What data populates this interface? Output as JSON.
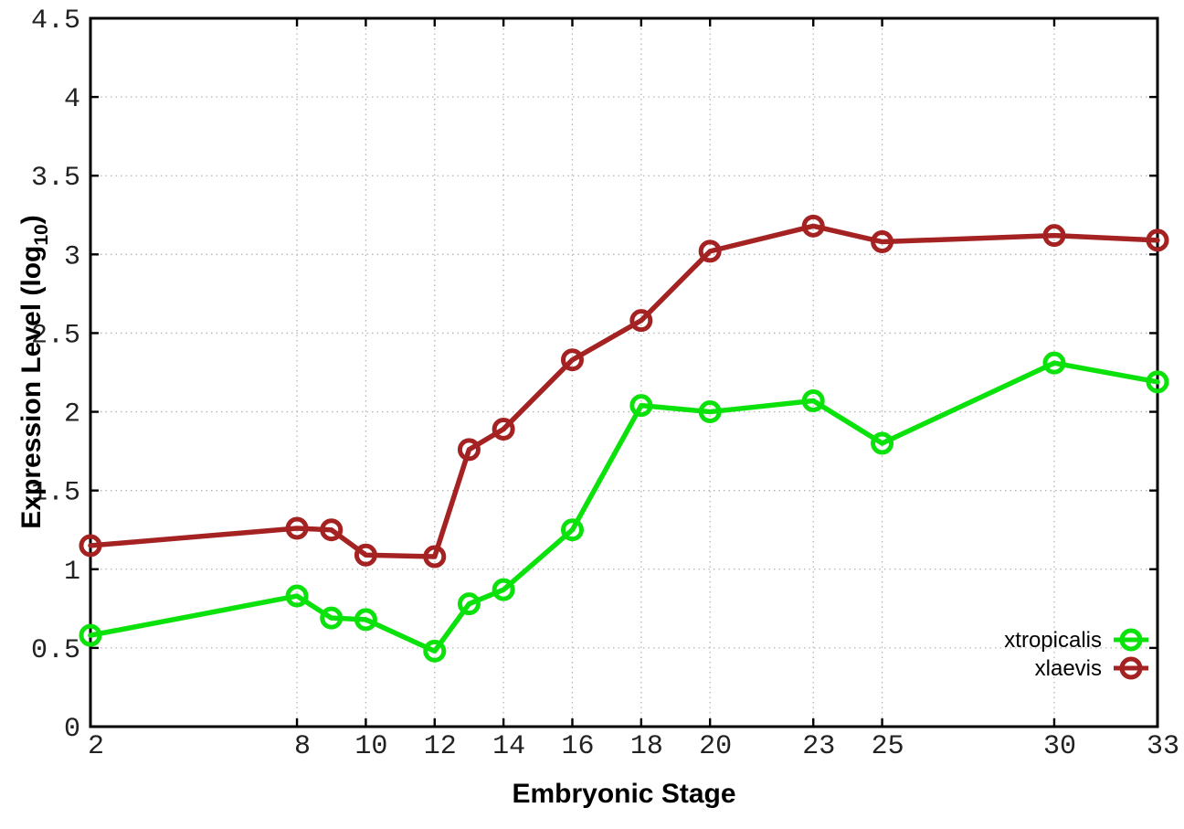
{
  "chart_data": {
    "type": "line",
    "xlabel": "Embryonic Stage",
    "ylabel_parts": {
      "main": "Expression Level (log",
      "sub": "10",
      "end": ")"
    },
    "x": [
      2,
      8,
      9,
      10,
      12,
      13,
      14,
      16,
      18,
      20,
      23,
      25,
      30,
      33
    ],
    "series": [
      {
        "name": "xtropicalis",
        "color": "#0be10b",
        "values": [
          0.58,
          0.83,
          0.69,
          0.68,
          0.48,
          0.78,
          0.87,
          1.25,
          2.04,
          2.0,
          2.07,
          1.8,
          2.31,
          2.19
        ]
      },
      {
        "name": "xlaevis",
        "color": "#a52222",
        "values": [
          1.15,
          1.26,
          1.25,
          1.09,
          1.08,
          1.76,
          1.89,
          2.33,
          2.58,
          3.02,
          3.18,
          3.08,
          3.12,
          3.09
        ]
      }
    ],
    "xlim": [
      2,
      33
    ],
    "ylim": [
      0,
      4.5
    ],
    "x_ticks": [
      2,
      8,
      10,
      12,
      14,
      16,
      18,
      20,
      23,
      25,
      30,
      33
    ],
    "y_ticks": [
      0,
      0.5,
      1,
      1.5,
      2,
      2.5,
      3,
      3.5,
      4,
      4.5
    ],
    "grid": true,
    "legend_position": "inside-right",
    "legend_order": [
      "xtropicalis",
      "xlaevis"
    ],
    "style": {
      "grid_color": "#b5b5b5",
      "axis_color": "#000000",
      "marker": "open-circle"
    }
  }
}
